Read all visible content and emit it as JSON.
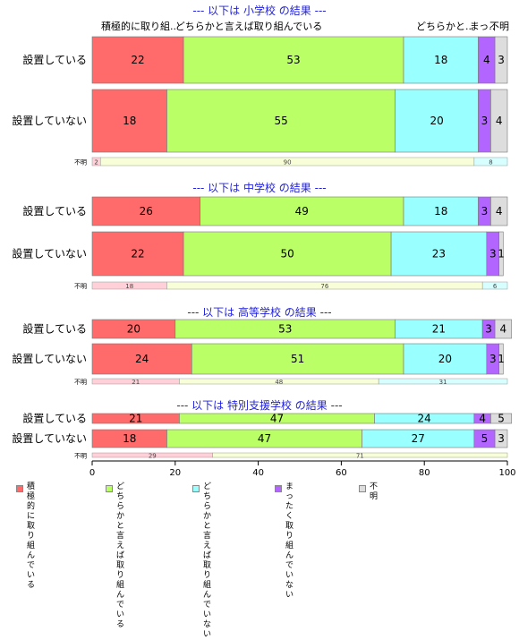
{
  "chart_data": {
    "type": "bar",
    "orientation": "horizontal",
    "stacked": true,
    "xlim": [
      0,
      100
    ],
    "xticks": [
      "0",
      "20",
      "40",
      "60",
      "80",
      "100"
    ],
    "colors": [
      "#FF6B6B",
      "#BBFF66",
      "#99FFFF",
      "#B366FF",
      "#DDDDDD"
    ],
    "unknown_colors": [
      "#FFD0D8",
      "#F8FFD8",
      "#D8FFFF",
      "#E8D8FF",
      "#F0F0F0"
    ],
    "top_labels": [
      "積極的に取り組..",
      "どちらかと言えば取り組んでいる",
      "どちらかと..",
      "まっ..",
      "不明"
    ],
    "legend": [
      "積極的に\n取り組んでいる",
      "どちらかと言えば\n取り組んでいる",
      "どちらかと言えば\n取り組んでいない",
      "まったく\n取り組んでいない",
      "不明"
    ],
    "panels": [
      {
        "title": "--- 以下は 小学校 の結果 ---",
        "rows": [
          {
            "label": "設置している",
            "values": [
              22,
              53,
              18,
              4,
              3
            ]
          },
          {
            "label": "設置していない",
            "values": [
              18,
              55,
              20,
              3,
              4
            ]
          }
        ],
        "unknown": {
          "label": "不明",
          "values": [
            2,
            90,
            8,
            0,
            0
          ],
          "texts": [
            "2",
            "90",
            "8",
            "",
            ""
          ]
        }
      },
      {
        "title": "--- 以下は 中学校 の結果 ---",
        "rows": [
          {
            "label": "設置している",
            "values": [
              26,
              49,
              18,
              3,
              4
            ]
          },
          {
            "label": "設置していない",
            "values": [
              22,
              50,
              23,
              3,
              1
            ]
          }
        ],
        "unknown": {
          "label": "不明",
          "values": [
            18,
            76,
            6,
            0,
            0
          ],
          "texts": [
            "18",
            "76",
            "6",
            "",
            ""
          ]
        }
      },
      {
        "title": "--- 以下は 高等学校 の結果 ---",
        "rows": [
          {
            "label": "設置している",
            "values": [
              20,
              53,
              21,
              3,
              4
            ]
          },
          {
            "label": "設置していない",
            "values": [
              24,
              51,
              20,
              3,
              1
            ]
          }
        ],
        "unknown": {
          "label": "不明",
          "values": [
            21,
            48,
            31,
            0,
            0
          ],
          "texts": [
            "21",
            "48",
            "31",
            "",
            ""
          ]
        }
      },
      {
        "title": "--- 以下は 特別支援学校 の結果 ---",
        "rows": [
          {
            "label": "設置している",
            "values": [
              21,
              47,
              24,
              4,
              5
            ]
          },
          {
            "label": "設置していない",
            "values": [
              18,
              47,
              27,
              5,
              3
            ]
          }
        ],
        "unknown": {
          "label": "不明",
          "values": [
            29,
            71,
            0,
            0,
            0
          ],
          "texts": [
            "29",
            "71",
            "",
            "",
            ""
          ]
        }
      }
    ]
  }
}
